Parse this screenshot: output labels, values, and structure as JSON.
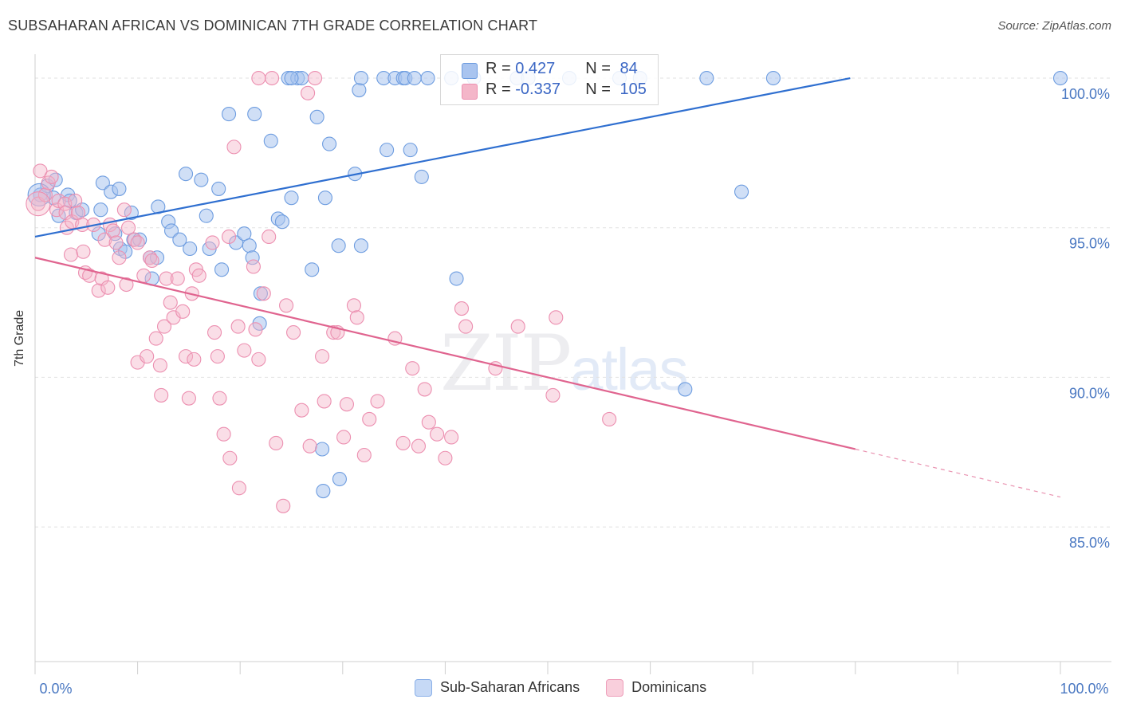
{
  "title": "SUBSAHARAN AFRICAN VS DOMINICAN 7TH GRADE CORRELATION CHART",
  "source": "Source: ZipAtlas.com",
  "watermark": {
    "zip": "ZIP",
    "atlas": "atlas"
  },
  "legend_top": {
    "rows": [
      {
        "r_label": "R = ",
        "r_value": "0.427",
        "n_label": "N = ",
        "n_value": "84",
        "color": "#a9c4ef"
      },
      {
        "r_label": "R = ",
        "r_value": "-0.337",
        "n_label": "N = ",
        "n_value": "105",
        "color": "#f4b6c9"
      }
    ]
  },
  "legend_bottom": [
    {
      "label": "Sub-Saharan Africans",
      "color": "#a9c4ef"
    },
    {
      "label": "Dominicans",
      "color": "#f4b6c9"
    }
  ],
  "chart_data": {
    "type": "scatter",
    "title": "SUBSAHARAN AFRICAN VS DOMINICAN 7TH GRADE CORRELATION CHART",
    "xlabel": "",
    "ylabel": "7th Grade",
    "xlim": [
      0,
      100
    ],
    "ylim": [
      80.5,
      100.8
    ],
    "x_tick_labels": [
      "0.0%",
      "100.0%"
    ],
    "y_ticks": [
      85,
      90,
      95,
      100
    ],
    "y_tick_labels": [
      "85.0%",
      "90.0%",
      "95.0%",
      "100.0%"
    ],
    "grid": true,
    "colors": {
      "blue": "#6e9de0",
      "blue_fill": "#a9c4ef",
      "pink": "#ec8fb0",
      "pink_fill": "#f4b6c9",
      "blue_line": "#2f6fd0",
      "pink_line": "#e0648f"
    },
    "series": [
      {
        "name": "Sub-Saharan Africans",
        "r": 0.427,
        "n": 84,
        "points": [
          [
            0.5,
            96.1
          ],
          [
            1.2,
            96.4
          ],
          [
            1.8,
            96.0
          ],
          [
            2.0,
            96.6
          ],
          [
            2.3,
            95.4
          ],
          [
            3.2,
            96.1
          ],
          [
            3.4,
            95.9
          ],
          [
            4.0,
            95.5
          ],
          [
            4.6,
            95.6
          ],
          [
            6.4,
            95.6
          ],
          [
            6.6,
            96.5
          ],
          [
            7.4,
            96.2
          ],
          [
            8.2,
            96.3
          ],
          [
            6.2,
            94.8
          ],
          [
            7.8,
            94.8
          ],
          [
            8.3,
            94.3
          ],
          [
            8.8,
            94.2
          ],
          [
            9.4,
            95.5
          ],
          [
            9.6,
            94.6
          ],
          [
            10.2,
            94.6
          ],
          [
            11.2,
            94.0
          ],
          [
            11.4,
            93.3
          ],
          [
            11.9,
            94.0
          ],
          [
            12.0,
            95.7
          ],
          [
            13.0,
            95.2
          ],
          [
            13.3,
            94.9
          ],
          [
            14.1,
            94.6
          ],
          [
            14.7,
            96.8
          ],
          [
            15.1,
            94.3
          ],
          [
            16.2,
            96.6
          ],
          [
            16.7,
            95.4
          ],
          [
            17.0,
            94.3
          ],
          [
            17.9,
            96.3
          ],
          [
            18.2,
            93.6
          ],
          [
            18.9,
            98.8
          ],
          [
            19.6,
            94.5
          ],
          [
            20.4,
            94.8
          ],
          [
            20.9,
            94.4
          ],
          [
            21.2,
            94.0
          ],
          [
            21.4,
            98.8
          ],
          [
            21.9,
            91.8
          ],
          [
            22.0,
            92.8
          ],
          [
            23.0,
            97.9
          ],
          [
            23.7,
            95.3
          ],
          [
            24.1,
            95.2
          ],
          [
            24.7,
            100.0
          ],
          [
            25.0,
            96.0
          ],
          [
            25.6,
            100.0
          ],
          [
            26.0,
            100.0
          ],
          [
            25.0,
            100.0
          ],
          [
            27.0,
            93.6
          ],
          [
            27.5,
            98.7
          ],
          [
            28.0,
            87.6
          ],
          [
            28.3,
            96.0
          ],
          [
            28.7,
            97.8
          ],
          [
            29.6,
            94.4
          ],
          [
            28.1,
            86.2
          ],
          [
            29.7,
            86.6
          ],
          [
            31.2,
            96.8
          ],
          [
            31.6,
            99.6
          ],
          [
            31.8,
            94.4
          ],
          [
            34.0,
            100.0
          ],
          [
            34.3,
            97.6
          ],
          [
            35.1,
            100.0
          ],
          [
            35.9,
            100.0
          ],
          [
            36.1,
            100.0
          ],
          [
            36.6,
            97.6
          ],
          [
            37.0,
            100.0
          ],
          [
            37.7,
            96.7
          ],
          [
            38.3,
            100.0
          ],
          [
            40.6,
            100.0
          ],
          [
            31.8,
            100.0
          ],
          [
            41.1,
            93.3
          ],
          [
            42.8,
            100.0
          ],
          [
            47.0,
            100.0
          ],
          [
            48.1,
            100.0
          ],
          [
            52.1,
            100.0
          ],
          [
            57.0,
            100.0
          ],
          [
            59.0,
            100.0
          ],
          [
            63.4,
            89.6
          ],
          [
            65.5,
            100.0
          ],
          [
            68.9,
            96.2
          ],
          [
            72.0,
            100.0
          ],
          [
            100.0,
            100.0
          ]
        ],
        "trend": {
          "x1": 0,
          "y1": 94.7,
          "x2": 79.5,
          "y2": 100.0
        }
      },
      {
        "name": "Dominicans",
        "r": -0.337,
        "n": 105,
        "points": [
          [
            0.3,
            95.8
          ],
          [
            0.5,
            96.9
          ],
          [
            1.0,
            96.1
          ],
          [
            1.3,
            96.5
          ],
          [
            1.6,
            96.7
          ],
          [
            2.1,
            95.6
          ],
          [
            2.3,
            95.9
          ],
          [
            2.9,
            95.8
          ],
          [
            3.0,
            95.5
          ],
          [
            3.1,
            95.0
          ],
          [
            3.6,
            95.2
          ],
          [
            3.5,
            94.1
          ],
          [
            3.9,
            95.9
          ],
          [
            4.2,
            95.5
          ],
          [
            4.6,
            95.1
          ],
          [
            4.7,
            94.2
          ],
          [
            4.9,
            93.5
          ],
          [
            5.3,
            93.4
          ],
          [
            5.7,
            95.1
          ],
          [
            6.2,
            92.9
          ],
          [
            6.5,
            93.3
          ],
          [
            6.8,
            94.6
          ],
          [
            7.1,
            93.0
          ],
          [
            7.3,
            95.1
          ],
          [
            7.6,
            94.9
          ],
          [
            7.9,
            94.5
          ],
          [
            8.2,
            94.0
          ],
          [
            8.7,
            95.6
          ],
          [
            8.9,
            93.1
          ],
          [
            9.1,
            95.0
          ],
          [
            9.7,
            94.6
          ],
          [
            10.0,
            94.5
          ],
          [
            10.0,
            90.5
          ],
          [
            10.6,
            93.4
          ],
          [
            10.9,
            90.7
          ],
          [
            11.2,
            94.0
          ],
          [
            11.4,
            93.9
          ],
          [
            11.8,
            91.3
          ],
          [
            12.2,
            90.4
          ],
          [
            12.3,
            89.4
          ],
          [
            12.6,
            91.7
          ],
          [
            12.8,
            93.3
          ],
          [
            13.2,
            92.5
          ],
          [
            13.5,
            92.0
          ],
          [
            13.9,
            93.3
          ],
          [
            14.4,
            92.2
          ],
          [
            14.7,
            90.7
          ],
          [
            15.0,
            89.3
          ],
          [
            15.3,
            92.8
          ],
          [
            15.5,
            90.6
          ],
          [
            15.7,
            93.6
          ],
          [
            16.0,
            93.4
          ],
          [
            17.3,
            94.5
          ],
          [
            17.5,
            91.5
          ],
          [
            17.8,
            90.7
          ],
          [
            18.0,
            89.3
          ],
          [
            18.4,
            88.1
          ],
          [
            18.9,
            94.7
          ],
          [
            19.0,
            87.3
          ],
          [
            19.4,
            97.7
          ],
          [
            19.8,
            91.7
          ],
          [
            19.9,
            86.3
          ],
          [
            20.4,
            90.9
          ],
          [
            21.3,
            93.7
          ],
          [
            21.5,
            91.6
          ],
          [
            21.8,
            90.6
          ],
          [
            21.8,
            100.0
          ],
          [
            22.3,
            92.8
          ],
          [
            22.8,
            94.7
          ],
          [
            23.1,
            100.0
          ],
          [
            23.5,
            87.8
          ],
          [
            24.2,
            85.7
          ],
          [
            24.5,
            92.4
          ],
          [
            25.2,
            91.5
          ],
          [
            26.0,
            88.9
          ],
          [
            26.6,
            99.5
          ],
          [
            26.8,
            87.7
          ],
          [
            27.3,
            100.0
          ],
          [
            28.0,
            90.7
          ],
          [
            28.2,
            89.2
          ],
          [
            29.1,
            91.5
          ],
          [
            29.5,
            91.5
          ],
          [
            30.1,
            88.0
          ],
          [
            30.4,
            89.1
          ],
          [
            31.1,
            92.4
          ],
          [
            31.4,
            92.0
          ],
          [
            32.1,
            87.4
          ],
          [
            32.6,
            88.6
          ],
          [
            33.4,
            89.2
          ],
          [
            35.1,
            91.3
          ],
          [
            35.9,
            87.8
          ],
          [
            36.8,
            90.3
          ],
          [
            37.4,
            87.7
          ],
          [
            38.0,
            89.6
          ],
          [
            38.4,
            88.5
          ],
          [
            39.2,
            88.1
          ],
          [
            40.0,
            87.3
          ],
          [
            40.6,
            88.0
          ],
          [
            41.6,
            92.3
          ],
          [
            42.0,
            91.7
          ],
          [
            44.9,
            90.3
          ],
          [
            47.1,
            91.7
          ],
          [
            50.5,
            89.4
          ],
          [
            50.8,
            92.0
          ],
          [
            56.0,
            88.6
          ]
        ],
        "trend": {
          "x1": 0,
          "y1": 94.0,
          "x2": 80.0,
          "y2": 87.6
        },
        "trend_dashed": {
          "x1": 80.0,
          "y1": 87.6,
          "x2": 100.0,
          "y2": 86.0
        }
      }
    ]
  }
}
